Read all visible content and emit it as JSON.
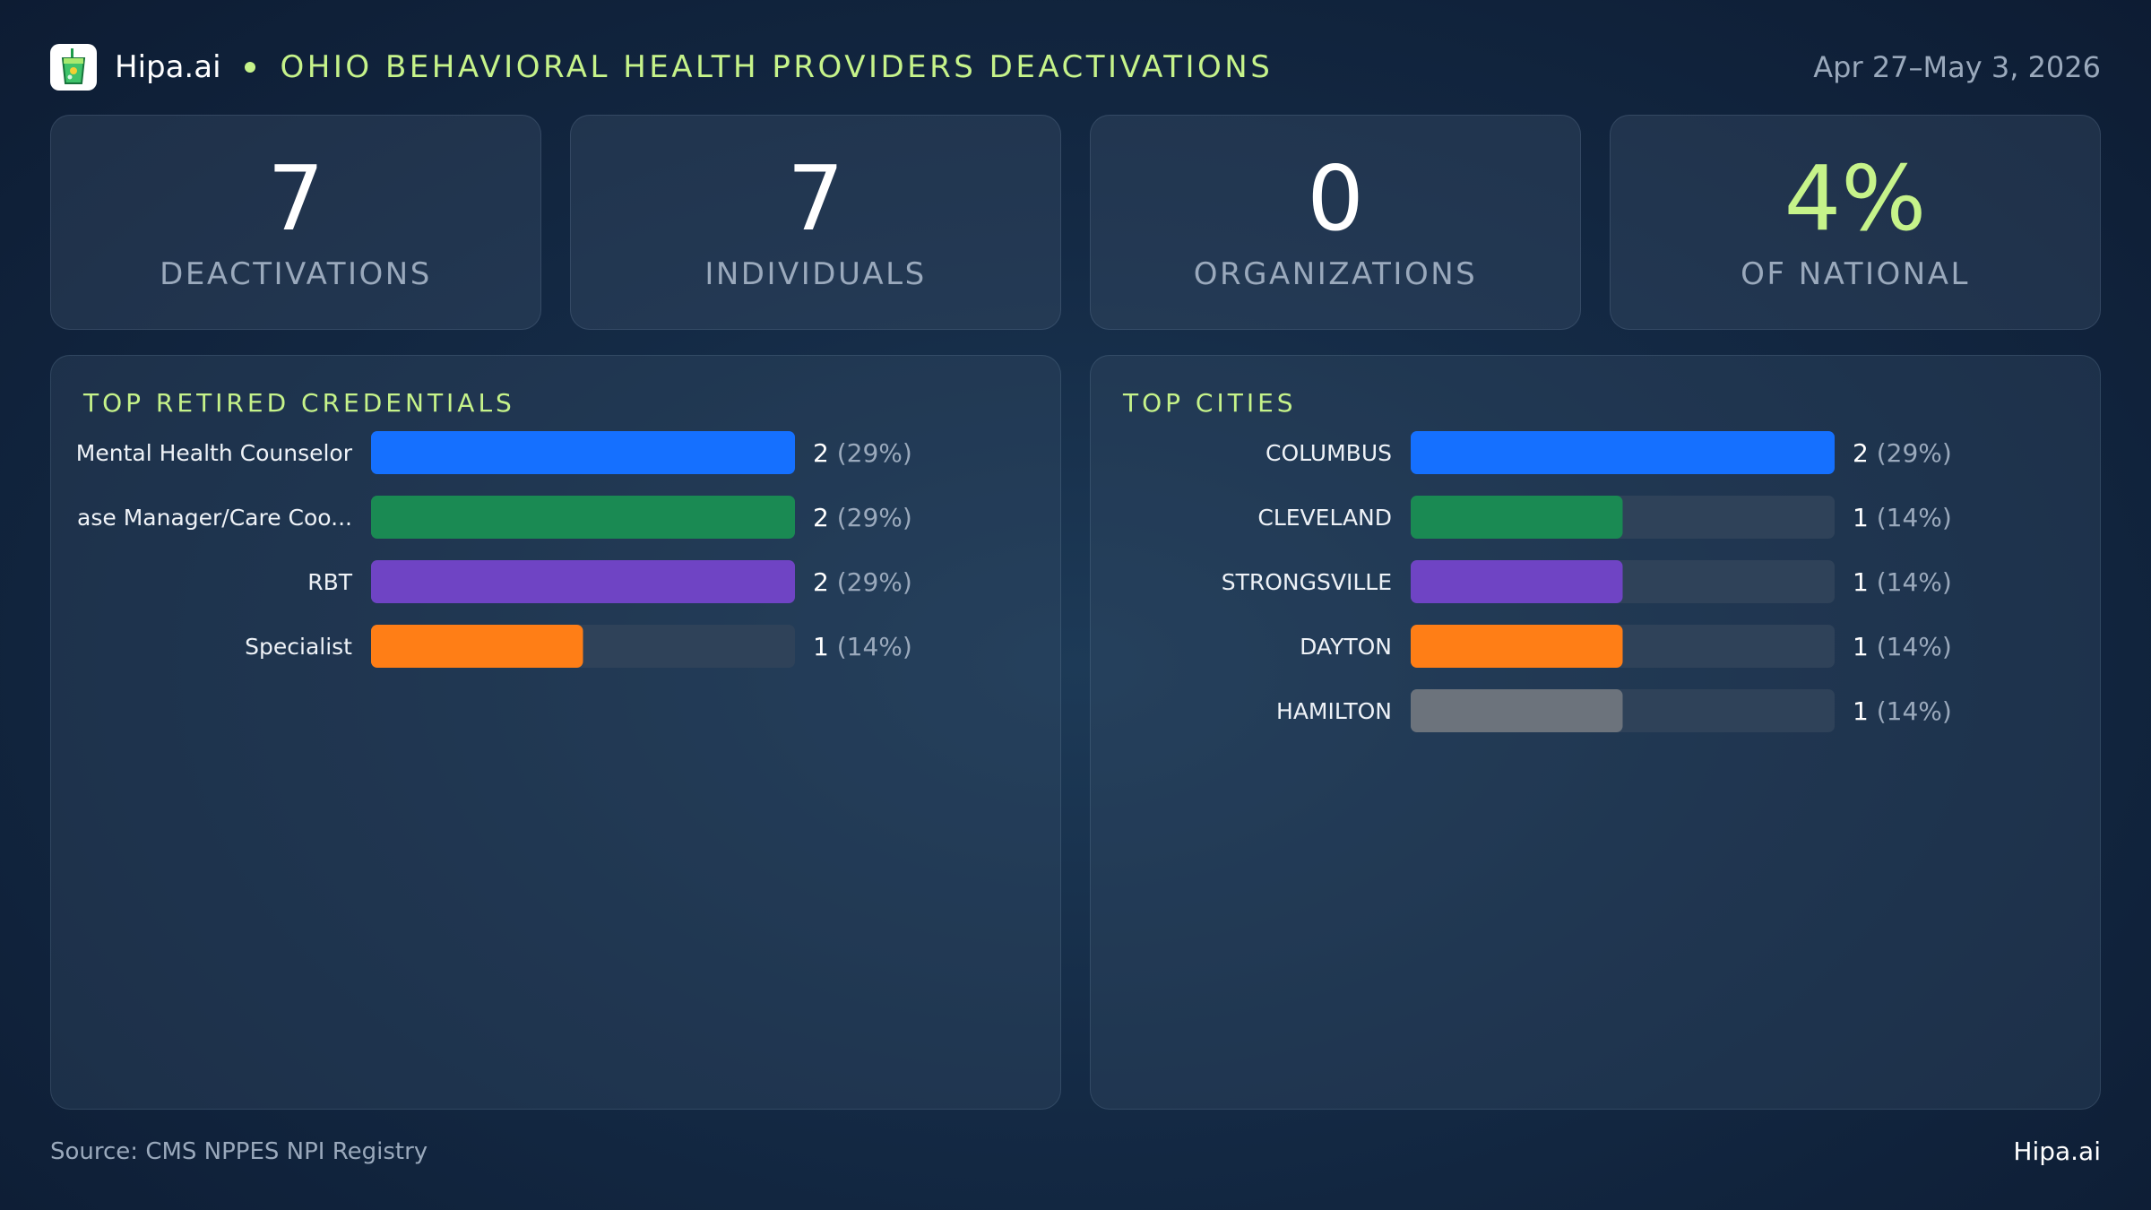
{
  "header": {
    "brand": "Hipa.ai",
    "title": "OHIO BEHAVIORAL HEALTH PROVIDERS DEACTIVATIONS",
    "date_range": "Apr 27–May 3, 2026",
    "logo_icon": "drink-cup-icon"
  },
  "stats": [
    {
      "value": "7",
      "label": "DEACTIVATIONS",
      "accent": false
    },
    {
      "value": "7",
      "label": "INDIVIDUALS",
      "accent": false
    },
    {
      "value": "0",
      "label": "ORGANIZATIONS",
      "accent": false
    },
    {
      "value": "4%",
      "label": "OF NATIONAL",
      "accent": true
    }
  ],
  "chart_data": [
    {
      "type": "bar",
      "orientation": "horizontal",
      "title": "TOP RETIRED CREDENTIALS",
      "max": 2,
      "categories": [
        "Mental Health Counselor",
        "ase Manager/Care Coo...",
        "RBT",
        "Specialist"
      ],
      "values": [
        2,
        2,
        2,
        1
      ],
      "percent_labels": [
        "(29%)",
        "(29%)",
        "(29%)",
        "(14%)"
      ],
      "colors": [
        "#1570ff",
        "#1a8a53",
        "#6f44c4",
        "#ff7e16"
      ]
    },
    {
      "type": "bar",
      "orientation": "horizontal",
      "title": "TOP CITIES",
      "max": 2,
      "categories": [
        "COLUMBUS",
        "CLEVELAND",
        "STRONGSVILLE",
        "DAYTON",
        "HAMILTON"
      ],
      "values": [
        2,
        1,
        1,
        1,
        1
      ],
      "percent_labels": [
        "(29%)",
        "(14%)",
        "(14%)",
        "(14%)",
        "(14%)"
      ],
      "colors": [
        "#1570ff",
        "#1a8a53",
        "#6f44c4",
        "#ff7e16",
        "#6c737c"
      ]
    }
  ],
  "footer": {
    "source": "Source: CMS NPPES NPI Registry",
    "brand": "Hipa.ai"
  }
}
